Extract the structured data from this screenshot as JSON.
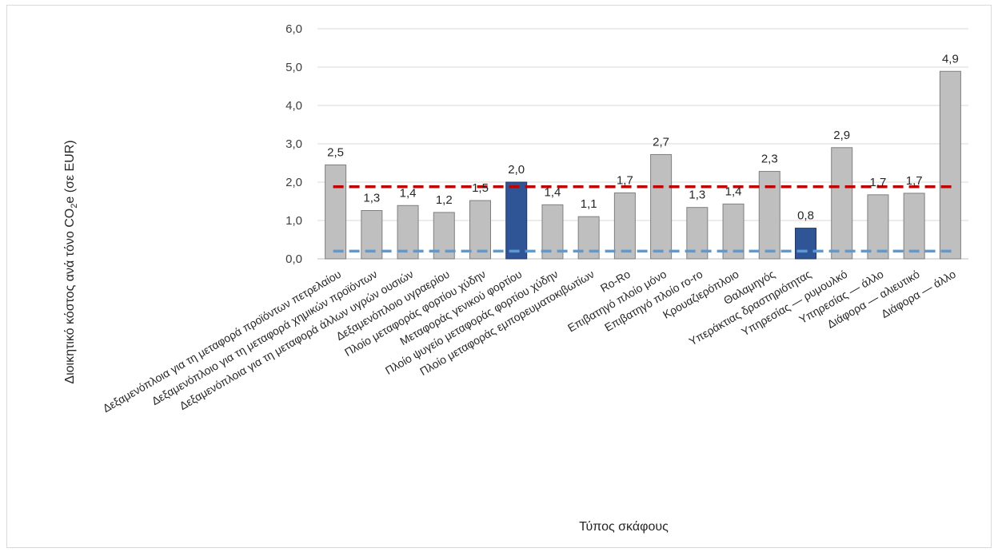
{
  "chart_data": {
    "type": "bar",
    "xlabel": "Τύπος σκάφους",
    "ylabel_parts": [
      "Διοικητικό κόστος ανά τόνο CO",
      "2",
      "e (σε EUR)"
    ],
    "ylim": [
      0,
      6
    ],
    "yticks": [
      "0,0",
      "1,0",
      "2,0",
      "3,0",
      "4,0",
      "5,0",
      "6,0"
    ],
    "grid": true,
    "categories": [
      "Δεξαμενόπλοια για τη μεταφορά προϊόντων πετρελαίου",
      "Δεξαμενόπλοιο για τη μεταφορά χημικών προϊόντων",
      "Δεξαμενόπλοια για τη μεταφορά άλλων υγρών ουσιών",
      "Δεξαμενόπλοιο υγραερίου",
      "Πλοίο μεταφοράς φορτίου χύδην",
      "Μεταφοράς γενικού φορτίου",
      "Πλοίο ψυγείο μεταφοράς φορτίου χύδην",
      "Πλοίο μεταφοράς εμπορευματοκιβωτίων",
      "Ro-Ro",
      "Επιβατηγό πλοίο μόνο",
      "Επιβατηγό πλοίο ro-ro",
      "Κρουαζιερόπλοιο",
      "Θαλαμηγός",
      "Υπεράκτιας δραστηριότητας",
      "Υπηρεσίας — ρυμουλκό",
      "Υπηρεσίας — άλλο",
      "Διάφορα — αλιευτικό",
      "Διάφορα — άλλο"
    ],
    "values": [
      2.45,
      1.26,
      1.39,
      1.21,
      1.52,
      2.0,
      1.41,
      1.1,
      1.72,
      2.72,
      1.34,
      1.43,
      2.28,
      0.8,
      2.9,
      1.67,
      1.71,
      4.89
    ],
    "data_labels": [
      "2,5",
      "1,3",
      "1,4",
      "1,2",
      "1,5",
      "2,0",
      "1,4",
      "1,1",
      "1,7",
      "2,7",
      "1,3",
      "1,4",
      "2,3",
      "0,8",
      "2,9",
      "1,7",
      "1,7",
      "4,9"
    ],
    "highlighted": [
      5,
      13
    ],
    "reference_lines": [
      {
        "value": 1.88,
        "color": "#c00000",
        "style": "dashed"
      },
      {
        "value": 0.2,
        "color": "#5b9bd5",
        "style": "dashed"
      }
    ],
    "colors": {
      "bar": "#bfbfbf",
      "bar_edge": "#7f7f7f",
      "highlight": "#2f5597",
      "grid": "#d9d9d9"
    }
  }
}
